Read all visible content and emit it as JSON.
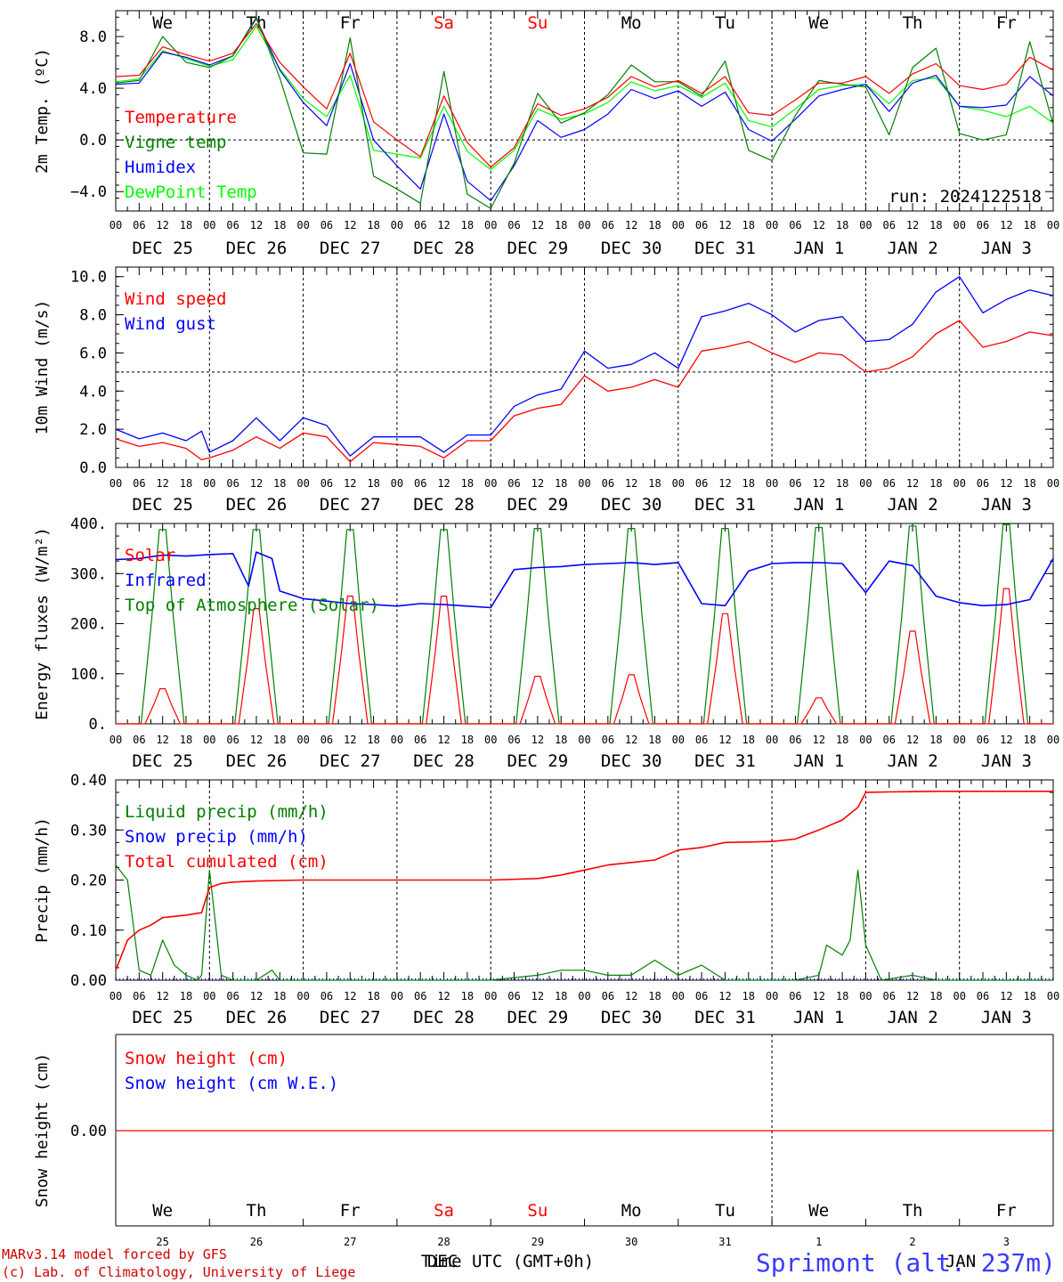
{
  "location": "Sprimont (alt. 237m)",
  "credits": [
    "MARv3.14 model forced by GFS",
    "(c) Lab. of Climatology, University of Liege"
  ],
  "time_axis": {
    "hours": [
      "00",
      "06",
      "12",
      "18"
    ],
    "dates": [
      "DEC 25",
      "DEC 26",
      "DEC 27",
      "DEC 28",
      "DEC 29",
      "DEC 30",
      "DEC 31",
      "JAN  1",
      "JAN  2",
      "JAN  3"
    ],
    "weekdays": [
      "We",
      "Th",
      "Fr",
      "Sa",
      "Su",
      "Mo",
      "Tu",
      "We",
      "Th",
      "Fr"
    ],
    "weekend_color": "#ff0000",
    "bottom_days": [
      "25",
      "26",
      "27",
      "28",
      "29",
      "30",
      "31",
      "1",
      "2",
      "3"
    ],
    "bottom_month_dec": "DEC",
    "bottom_month_jan": "JAN",
    "bottom_title": "Time UTC (GMT+0h)"
  },
  "colors": {
    "red": "#ff0000",
    "green": "#008000",
    "blue": "#0000ff",
    "lime": "#00ff00",
    "location": "#3a3aff"
  },
  "chart_data": [
    {
      "type": "line",
      "ylabel": "2m Temp. (ºC)",
      "ylim": [
        -5.5,
        10.0
      ],
      "yticks": [
        -4.0,
        0.0,
        4.0,
        8.0
      ],
      "tick_labels": [
        "−4.0",
        "0.0",
        "4.0",
        "8.0"
      ],
      "ref_line": 0.0,
      "annotation": "run: 2024122518",
      "x_unit": "hours since DEC 25 00 UTC",
      "series": [
        {
          "name": "Temperature",
          "color": "#ff0000",
          "x": [
            0,
            6,
            12,
            18,
            24,
            30,
            36,
            42,
            48,
            54,
            60,
            66,
            72,
            78,
            84,
            90,
            96,
            102,
            108,
            114,
            120,
            126,
            132,
            138,
            144,
            150,
            156,
            162,
            168,
            174,
            180,
            186,
            192,
            198,
            204,
            210,
            216,
            222,
            228,
            234,
            240
          ],
          "y": [
            4.9,
            5.0,
            7.2,
            6.6,
            6.1,
            6.7,
            9.0,
            6.0,
            4.1,
            2.4,
            6.7,
            1.4,
            0.0,
            -1.3,
            3.4,
            -0.2,
            -2.1,
            -0.6,
            2.8,
            1.9,
            2.4,
            3.3,
            4.9,
            4.1,
            4.6,
            3.6,
            4.9,
            2.1,
            1.9,
            3.1,
            4.4,
            4.4,
            4.9,
            3.6,
            5.1,
            5.9,
            4.2,
            3.9,
            4.3,
            6.4,
            5.4
          ]
        },
        {
          "name": "Vigne temp",
          "color": "#008000",
          "x": [
            0,
            6,
            12,
            18,
            24,
            30,
            36,
            42,
            48,
            54,
            60,
            66,
            72,
            78,
            84,
            90,
            96,
            102,
            108,
            114,
            120,
            126,
            132,
            138,
            144,
            150,
            156,
            162,
            168,
            174,
            180,
            186,
            192,
            198,
            204,
            210,
            216,
            222,
            228,
            234,
            240
          ],
          "y": [
            4.4,
            4.6,
            8.0,
            6.0,
            5.6,
            6.5,
            9.5,
            4.8,
            -1.0,
            -1.1,
            7.9,
            -2.8,
            -3.8,
            -4.9,
            5.3,
            -4.2,
            -5.3,
            -1.8,
            3.6,
            1.3,
            2.1,
            3.5,
            5.8,
            4.5,
            4.5,
            3.4,
            6.1,
            -0.8,
            -1.6,
            1.9,
            4.6,
            4.3,
            4.1,
            0.4,
            5.6,
            7.1,
            0.5,
            0.0,
            0.4,
            7.6,
            1.2
          ]
        },
        {
          "name": "Humidex",
          "color": "#0000ff",
          "x": [
            0,
            6,
            12,
            18,
            24,
            30,
            36,
            42,
            48,
            54,
            60,
            66,
            72,
            78,
            84,
            90,
            96,
            102,
            108,
            114,
            120,
            126,
            132,
            138,
            144,
            150,
            156,
            162,
            168,
            174,
            180,
            186,
            192,
            198,
            204,
            210,
            216,
            222,
            228,
            234,
            240
          ],
          "y": [
            4.3,
            4.4,
            6.8,
            6.4,
            5.8,
            6.5,
            9.4,
            5.4,
            2.9,
            1.1,
            5.9,
            0.0,
            -2.0,
            -3.8,
            2.0,
            -3.2,
            -4.7,
            -2.0,
            1.5,
            0.2,
            0.8,
            2.0,
            3.9,
            3.2,
            3.8,
            2.6,
            3.7,
            0.8,
            -0.1,
            1.6,
            3.4,
            3.9,
            4.3,
            2.2,
            4.4,
            5.0,
            2.6,
            2.5,
            2.7,
            4.9,
            3.4
          ]
        },
        {
          "name": "DewPoint Temp",
          "color": "#00ff00",
          "x": [
            0,
            6,
            12,
            18,
            24,
            30,
            36,
            42,
            48,
            54,
            60,
            66,
            72,
            78,
            84,
            90,
            96,
            102,
            108,
            114,
            120,
            126,
            132,
            138,
            144,
            150,
            156,
            162,
            168,
            174,
            180,
            186,
            192,
            198,
            204,
            210,
            216,
            222,
            228,
            234,
            240
          ],
          "y": [
            4.5,
            4.7,
            6.9,
            6.3,
            5.7,
            6.2,
            8.8,
            5.5,
            3.2,
            1.8,
            5.0,
            -0.8,
            -1.1,
            -1.4,
            2.6,
            -0.9,
            -2.3,
            -0.8,
            2.4,
            1.6,
            2.0,
            2.9,
            4.5,
            3.8,
            4.2,
            3.3,
            4.4,
            1.5,
            1.0,
            2.4,
            3.9,
            4.2,
            4.3,
            2.8,
            4.6,
            4.8,
            2.6,
            2.3,
            1.8,
            2.6,
            1.3
          ]
        }
      ]
    },
    {
      "type": "line",
      "ylabel": "10m Wind (m/s)",
      "ylim": [
        0.0,
        10.5
      ],
      "yticks": [
        0.0,
        2.0,
        4.0,
        6.0,
        8.0,
        10.0
      ],
      "tick_labels": [
        "0.0",
        "2.0",
        "4.0",
        "6.0",
        "8.0",
        "10.0"
      ],
      "ref_line": 5.0,
      "x_unit": "hours since DEC 25 00 UTC",
      "series": [
        {
          "name": "Wind speed",
          "color": "#ff0000",
          "x": [
            0,
            6,
            12,
            18,
            22,
            24,
            30,
            36,
            42,
            48,
            54,
            60,
            66,
            72,
            78,
            84,
            90,
            96,
            102,
            108,
            114,
            120,
            126,
            132,
            138,
            144,
            150,
            156,
            162,
            168,
            174,
            180,
            186,
            192,
            198,
            204,
            210,
            216,
            222,
            228,
            234,
            240
          ],
          "y": [
            1.5,
            1.1,
            1.3,
            1.0,
            0.4,
            0.5,
            0.9,
            1.6,
            1.0,
            1.8,
            1.6,
            0.3,
            1.3,
            1.2,
            1.1,
            0.5,
            1.4,
            1.4,
            2.7,
            3.1,
            3.3,
            4.8,
            4.0,
            4.2,
            4.6,
            4.2,
            6.1,
            6.3,
            6.6,
            6.0,
            5.5,
            6.0,
            5.9,
            5.0,
            5.2,
            5.8,
            7.0,
            7.7,
            6.3,
            6.6,
            7.1,
            6.9
          ]
        },
        {
          "name": "Wind gust",
          "color": "#0000ff",
          "x": [
            0,
            6,
            12,
            18,
            22,
            24,
            30,
            36,
            42,
            48,
            54,
            60,
            66,
            72,
            78,
            84,
            90,
            96,
            102,
            108,
            114,
            120,
            126,
            132,
            138,
            144,
            150,
            156,
            162,
            168,
            174,
            180,
            186,
            192,
            198,
            204,
            210,
            216,
            222,
            228,
            234,
            240
          ],
          "y": [
            2.0,
            1.5,
            1.8,
            1.4,
            1.9,
            0.8,
            1.4,
            2.6,
            1.4,
            2.6,
            2.2,
            0.6,
            1.6,
            1.6,
            1.6,
            0.8,
            1.7,
            1.7,
            3.2,
            3.8,
            4.1,
            6.1,
            5.2,
            5.4,
            6.0,
            5.2,
            7.9,
            8.2,
            8.6,
            8.0,
            7.1,
            7.7,
            7.9,
            6.6,
            6.7,
            7.5,
            9.2,
            10.0,
            8.1,
            8.8,
            9.3,
            9.0
          ]
        }
      ]
    },
    {
      "type": "line",
      "ylabel": "Energy fluxes (W/m²)",
      "ylim": [
        0,
        400
      ],
      "yticks": [
        0,
        100,
        200,
        300,
        400
      ],
      "tick_labels": [
        "0.",
        "100.",
        "200.",
        "300.",
        "400."
      ],
      "x_unit": "hours since DEC 25 00 UTC",
      "series": [
        {
          "name": "Solar",
          "color": "#ff0000",
          "noon_peaks": [
            70,
            230,
            255,
            255,
            95,
            98,
            220,
            52,
            185,
            270
          ]
        },
        {
          "name": "Infrared",
          "color": "#0000ff",
          "x": [
            0,
            6,
            12,
            18,
            24,
            30,
            34,
            36,
            40,
            42,
            48,
            54,
            60,
            66,
            72,
            78,
            84,
            90,
            96,
            102,
            108,
            114,
            120,
            126,
            132,
            138,
            144,
            150,
            156,
            162,
            168,
            174,
            180,
            186,
            192,
            198,
            204,
            210,
            216,
            222,
            228,
            234,
            240
          ],
          "y": [
            328,
            330,
            337,
            335,
            338,
            340,
            275,
            343,
            330,
            265,
            250,
            245,
            240,
            238,
            235,
            240,
            238,
            235,
            232,
            308,
            312,
            314,
            318,
            320,
            322,
            318,
            322,
            240,
            236,
            305,
            320,
            322,
            322,
            320,
            262,
            325,
            316,
            255,
            242,
            236,
            238,
            248,
            330
          ]
        },
        {
          "name": "Top of Atmosphere (Solar)",
          "color": "#008000",
          "noon_peaks": [
            388,
            388,
            388,
            388,
            390,
            390,
            390,
            392,
            395,
            398
          ]
        }
      ]
    },
    {
      "type": "line",
      "ylabel": "Precip (mm/h)",
      "ylim": [
        0.0,
        0.4
      ],
      "yticks": [
        0.0,
        0.1,
        0.2,
        0.3,
        0.4
      ],
      "tick_labels": [
        "0.00",
        "0.10",
        "0.20",
        "0.30",
        "0.40"
      ],
      "x_unit": "hours since DEC 25 00 UTC",
      "series": [
        {
          "name": "Liquid precip (mm/h)",
          "color": "#008000",
          "x": [
            0,
            3,
            6,
            9,
            12,
            15,
            18,
            21,
            22,
            24,
            27,
            30,
            36,
            40,
            42,
            46,
            60,
            96,
            108,
            114,
            120,
            126,
            132,
            138,
            144,
            150,
            156,
            162,
            168,
            174,
            180,
            182,
            186,
            188,
            190,
            192,
            196,
            204,
            210,
            240
          ],
          "y": [
            0.23,
            0.2,
            0.02,
            0.01,
            0.08,
            0.03,
            0.01,
            0.0,
            0.01,
            0.22,
            0.01,
            0.0,
            0.0,
            0.02,
            0.0,
            0.0,
            0.0,
            0.0,
            0.01,
            0.02,
            0.02,
            0.01,
            0.01,
            0.04,
            0.01,
            0.03,
            0.0,
            0.0,
            0.0,
            0.0,
            0.01,
            0.07,
            0.05,
            0.08,
            0.22,
            0.07,
            0.0,
            0.01,
            0.0,
            0.0
          ]
        },
        {
          "name": "Snow precip (mm/h)",
          "color": "#0000ff",
          "x": [
            0,
            240
          ],
          "y": [
            0.0,
            0.0
          ]
        },
        {
          "name": "Total cumulated (cm)",
          "color": "#ff0000",
          "x": [
            0,
            3,
            6,
            9,
            12,
            18,
            22,
            24,
            27,
            30,
            36,
            48,
            72,
            96,
            108,
            114,
            120,
            126,
            132,
            138,
            144,
            150,
            156,
            162,
            168,
            174,
            180,
            186,
            190,
            192,
            198,
            210,
            240
          ],
          "y": [
            0.02,
            0.08,
            0.1,
            0.11,
            0.125,
            0.13,
            0.135,
            0.185,
            0.193,
            0.196,
            0.198,
            0.2,
            0.2,
            0.2,
            0.203,
            0.21,
            0.22,
            0.23,
            0.235,
            0.24,
            0.26,
            0.265,
            0.275,
            0.276,
            0.277,
            0.282,
            0.3,
            0.32,
            0.345,
            0.375,
            0.376,
            0.377,
            0.377
          ]
        }
      ]
    },
    {
      "type": "line",
      "ylabel": "Snow height (cm)",
      "yticks": [
        0.0
      ],
      "tick_labels": [
        "0.00"
      ],
      "x_unit": "hours since DEC 25 00 UTC",
      "series": [
        {
          "name": "Snow height (cm)",
          "color": "#ff0000",
          "x": [
            0,
            240
          ],
          "y": [
            0.0,
            0.0
          ]
        },
        {
          "name": "Snow height (cm W.E.)",
          "color": "#0000ff"
        }
      ]
    }
  ]
}
